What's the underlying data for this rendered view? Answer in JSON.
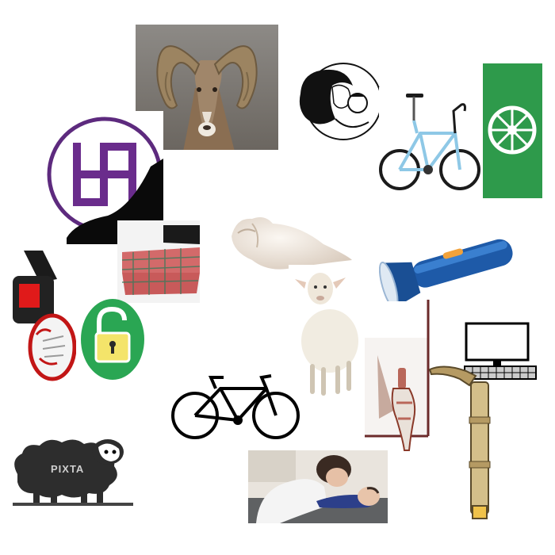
{
  "collage": {
    "watermark_text": "PIXTA",
    "items": [
      {
        "name": "bighorn-ram-photo",
        "icon": "ram-icon"
      },
      {
        "name": "mother-and-baby-line-art",
        "icon": "mother-child-icon"
      },
      {
        "name": "road-bicycle-photo",
        "icon": "bicycle-icon"
      },
      {
        "name": "green-wheel-sign",
        "icon": "dharma-wheel-icon"
      },
      {
        "name": "purple-swastika-emblem",
        "icon": "swastika-icon"
      },
      {
        "name": "folded-cloth-headband",
        "icon": "cloth-icon"
      },
      {
        "name": "conch-shell",
        "icon": "conch-icon"
      },
      {
        "name": "blue-flashlight",
        "icon": "flashlight-icon"
      },
      {
        "name": "red-lantern-torch",
        "icon": "lantern-icon"
      },
      {
        "name": "green-padlock-icon",
        "icon": "padlock-icon"
      },
      {
        "name": "watercolor-sheep",
        "icon": "sheep-icon"
      },
      {
        "name": "wooden-stand-figure",
        "icon": "statue-icon"
      },
      {
        "name": "bicycle-silhouette",
        "icon": "bicycle-icon"
      },
      {
        "name": "computer-on-wooden-post",
        "icon": "computer-icon"
      },
      {
        "name": "black-sheep-cartoon",
        "icon": "sheep-icon"
      },
      {
        "name": "mother-with-baby-photo",
        "icon": "mother-child-icon"
      }
    ]
  }
}
